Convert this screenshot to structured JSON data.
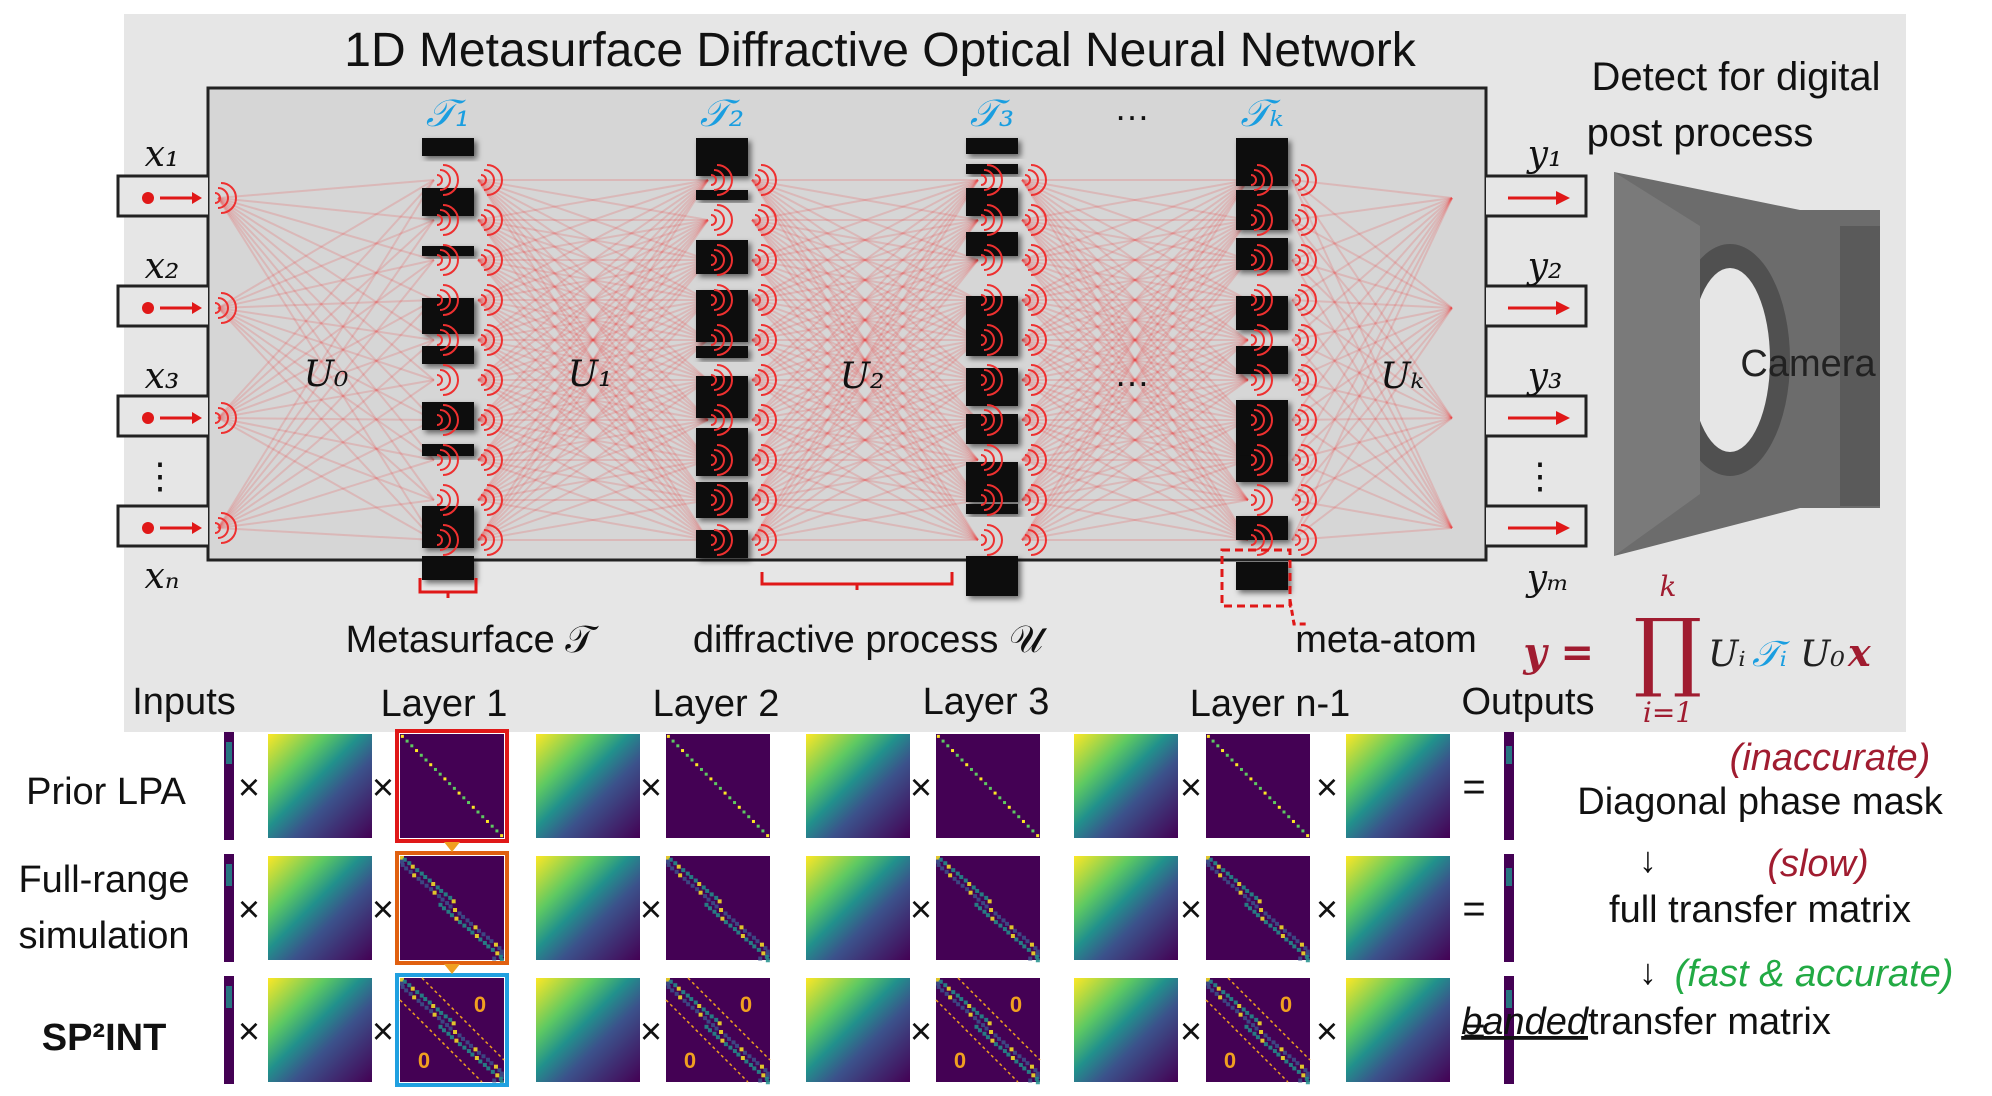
{
  "title": "1D Metasurface Diffractive Optical Neural Network",
  "inputs": {
    "labels": [
      "x₁",
      "x₂",
      "x₃",
      "⋮",
      "xₙ"
    ]
  },
  "outputs": {
    "labels": [
      "y₁",
      "y₂",
      "y₃",
      "⋮",
      "yₘ"
    ]
  },
  "layer_symbols": [
    "𝒯₁",
    "𝒯₂",
    "𝒯₃",
    "…",
    "𝒯ₖ"
  ],
  "propagation_labels": [
    "U₀",
    "U₁",
    "U₂",
    "…",
    "Uₖ"
  ],
  "annotations": {
    "metasurface": "Metasurface 𝒯",
    "diffractive": "diffractive process 𝒰",
    "meta_atom": "meta-atom",
    "detect": [
      "Detect for digital",
      "post process"
    ],
    "camera": "Camera"
  },
  "equation": {
    "lhs": "y =",
    "prod": "∏",
    "upper": "k",
    "lower": "i=1",
    "rhs_a": "Uᵢ",
    "rhs_t": "𝒯ᵢ",
    "rhs_b": "U₀",
    "rhs_x": "x"
  },
  "column_headers": [
    "Inputs",
    "Layer 1",
    "Layer 2",
    "Layer 3",
    "Layer n-1",
    "Outputs"
  ],
  "rows": [
    {
      "label": [
        "Prior LPA"
      ],
      "tag": "(inaccurate)",
      "desc": "Diagonal phase mask"
    },
    {
      "label": [
        "Full-range",
        "simulation"
      ],
      "tag": "(slow)",
      "desc": "full transfer matrix"
    },
    {
      "label": [
        "SP²INT"
      ],
      "tag": "(fast & accurate)",
      "desc_underlined": "banded",
      "desc": " transfer matrix"
    }
  ],
  "operators": {
    "times": "×",
    "equals": "=",
    "arrow": "↓",
    "zero": "0"
  },
  "colors": {
    "panel_bg": "#e6e6e6",
    "box_bg": "#d6d6d6",
    "light_red": "#ee3030",
    "blue_label": "#1a9ee0",
    "dark_red": "#a01c30",
    "green": "#22aa44",
    "orange": "#f0a020",
    "matrix_dark": "#440154",
    "matrix_mid": "#21918c",
    "matrix_yellow": "#fde725",
    "frame_red": "#e01818",
    "frame_orange": "#e06010",
    "frame_blue": "#20a0e0"
  }
}
